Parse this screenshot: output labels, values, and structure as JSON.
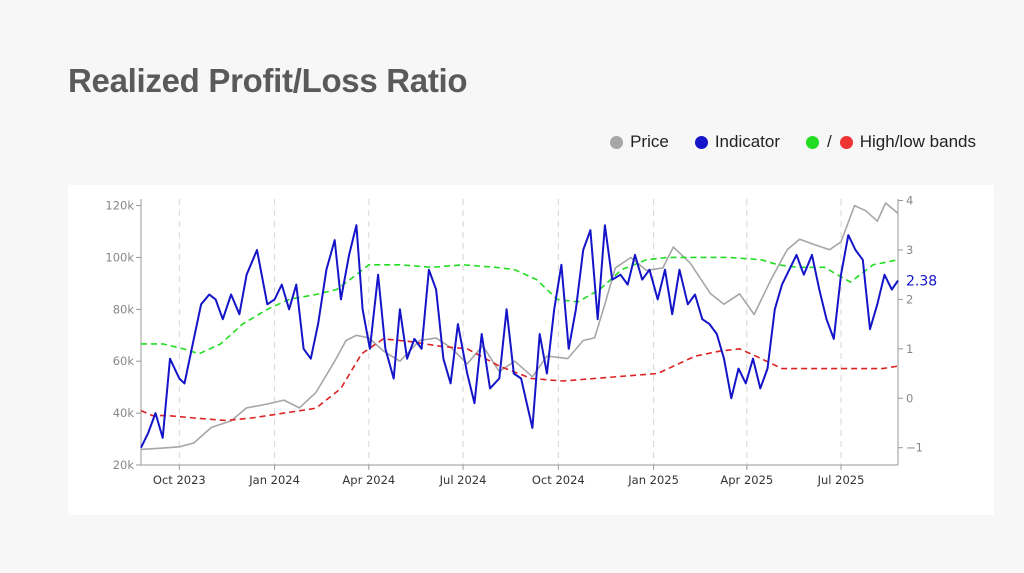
{
  "title": "Realized Profit/Loss Ratio",
  "legend": {
    "price_label": "Price",
    "indicator_label": "Indicator",
    "bands_label": "High/low bands",
    "bands_slash": "/"
  },
  "colors": {
    "price": "#a6a6a6",
    "indicator": "#1414c8",
    "high_band": "#22dd22",
    "low_band": "#dd2222",
    "title": "#5a5a5a",
    "axis_text": "#888888",
    "grid": "#d6d6d6"
  },
  "chart_data": {
    "type": "line",
    "title": "Realized Profit/Loss Ratio",
    "x_ticks": [
      "Oct 2023",
      "Jan 2024",
      "Apr 2024",
      "Jul 2024",
      "Oct 2024",
      "Jan 2025",
      "Apr 2025",
      "Jul 2025"
    ],
    "left_axis": {
      "ticks": [
        "20k",
        "40k",
        "60k",
        "80k",
        "100k",
        "120k"
      ],
      "tick_values": [
        20000,
        40000,
        60000,
        80000,
        100000,
        120000
      ],
      "range": [
        20000,
        121000
      ]
    },
    "right_axis": {
      "ticks": [
        "−1",
        "0",
        "1",
        "2",
        "3",
        "4"
      ],
      "tick_values": [
        -1,
        0,
        1,
        2,
        3,
        4
      ],
      "range": [
        -1.35,
        3.95
      ]
    },
    "x_range": [
      "2023-08-25",
      "2025-08-25"
    ],
    "last_value_label": "2.38",
    "vertical_grid": true,
    "horizontal_grid": false,
    "legend_position": "top-right",
    "series": [
      {
        "name": "Price",
        "axis": "left",
        "style": "solid",
        "x": [
          "2023-08-25",
          "2023-09-15",
          "2023-10-01",
          "2023-10-15",
          "2023-11-01",
          "2023-11-20",
          "2023-12-05",
          "2023-12-25",
          "2024-01-10",
          "2024-01-25",
          "2024-02-10",
          "2024-02-28",
          "2024-03-10",
          "2024-03-20",
          "2024-04-01",
          "2024-04-15",
          "2024-05-01",
          "2024-05-20",
          "2024-06-05",
          "2024-06-20",
          "2024-07-05",
          "2024-07-20",
          "2024-08-05",
          "2024-08-20",
          "2024-09-06",
          "2024-09-20",
          "2024-10-10",
          "2024-10-25",
          "2024-11-05",
          "2024-11-15",
          "2024-11-25",
          "2024-12-10",
          "2024-12-25",
          "2025-01-10",
          "2025-01-20",
          "2025-02-05",
          "2025-02-25",
          "2025-03-10",
          "2025-03-25",
          "2025-04-08",
          "2025-04-25",
          "2025-05-10",
          "2025-05-22",
          "2025-06-05",
          "2025-06-20",
          "2025-07-01",
          "2025-07-14",
          "2025-07-25",
          "2025-08-05",
          "2025-08-13",
          "2025-08-25"
        ],
        "values": [
          26000,
          26500,
          27000,
          28500,
          34500,
          37000,
          42000,
          43500,
          45000,
          42000,
          48000,
          60000,
          68000,
          70000,
          69000,
          64000,
          60000,
          68000,
          69000,
          65000,
          59000,
          66000,
          56000,
          60000,
          54000,
          62000,
          61000,
          68000,
          69000,
          82000,
          96000,
          100000,
          95000,
          96000,
          104000,
          98000,
          86000,
          82000,
          86000,
          78000,
          92000,
          103000,
          107000,
          105000,
          103000,
          106000,
          120000,
          118000,
          114000,
          121000,
          117000
        ]
      },
      {
        "name": "Indicator",
        "axis": "right",
        "style": "solid",
        "x": [
          "2023-08-25",
          "2023-09-01",
          "2023-09-08",
          "2023-09-15",
          "2023-09-22",
          "2023-10-01",
          "2023-10-06",
          "2023-10-15",
          "2023-10-22",
          "2023-10-30",
          "2023-11-05",
          "2023-11-12",
          "2023-11-20",
          "2023-11-28",
          "2023-12-05",
          "2023-12-15",
          "2023-12-25",
          "2024-01-01",
          "2024-01-08",
          "2024-01-15",
          "2024-01-22",
          "2024-01-29",
          "2024-02-05",
          "2024-02-12",
          "2024-02-20",
          "2024-02-28",
          "2024-03-05",
          "2024-03-13",
          "2024-03-20",
          "2024-03-26",
          "2024-04-02",
          "2024-04-10",
          "2024-04-17",
          "2024-04-25",
          "2024-05-01",
          "2024-05-08",
          "2024-05-15",
          "2024-05-22",
          "2024-05-29",
          "2024-06-05",
          "2024-06-12",
          "2024-06-19",
          "2024-06-26",
          "2024-07-05",
          "2024-07-12",
          "2024-07-19",
          "2024-07-27",
          "2024-08-05",
          "2024-08-12",
          "2024-08-19",
          "2024-08-26",
          "2024-09-06",
          "2024-09-13",
          "2024-09-20",
          "2024-09-27",
          "2024-10-04",
          "2024-10-11",
          "2024-10-18",
          "2024-10-25",
          "2024-11-01",
          "2024-11-08",
          "2024-11-15",
          "2024-11-22",
          "2024-11-30",
          "2024-12-07",
          "2024-12-14",
          "2024-12-21",
          "2024-12-28",
          "2025-01-05",
          "2025-01-12",
          "2025-01-19",
          "2025-01-26",
          "2025-02-03",
          "2025-02-10",
          "2025-02-17",
          "2025-02-24",
          "2025-03-03",
          "2025-03-10",
          "2025-03-17",
          "2025-03-24",
          "2025-03-31",
          "2025-04-07",
          "2025-04-14",
          "2025-04-21",
          "2025-04-28",
          "2025-05-05",
          "2025-05-12",
          "2025-05-19",
          "2025-05-26",
          "2025-06-03",
          "2025-06-10",
          "2025-06-17",
          "2025-06-24",
          "2025-07-01",
          "2025-07-08",
          "2025-07-15",
          "2025-07-22",
          "2025-07-29",
          "2025-08-05",
          "2025-08-12",
          "2025-08-19",
          "2025-08-25"
        ],
        "values": [
          -1.0,
          -0.7,
          -0.3,
          -0.8,
          0.8,
          0.4,
          0.3,
          1.2,
          1.9,
          2.1,
          2.0,
          1.6,
          2.1,
          1.7,
          2.5,
          3.0,
          1.9,
          2.0,
          2.3,
          1.8,
          2.3,
          1.0,
          0.8,
          1.5,
          2.6,
          3.2,
          2.0,
          2.9,
          3.5,
          1.8,
          1.0,
          2.5,
          1.0,
          0.4,
          1.8,
          0.8,
          1.2,
          1.0,
          2.6,
          2.2,
          0.8,
          0.3,
          1.5,
          0.5,
          -0.1,
          1.3,
          0.2,
          0.4,
          1.8,
          0.5,
          0.4,
          -0.6,
          1.3,
          0.5,
          1.8,
          2.7,
          1.0,
          1.8,
          3.0,
          3.4,
          1.6,
          3.5,
          2.4,
          2.5,
          2.3,
          2.9,
          2.4,
          2.6,
          2.0,
          2.6,
          1.7,
          2.6,
          1.9,
          2.1,
          1.6,
          1.5,
          1.3,
          0.8,
          0.0,
          0.6,
          0.3,
          0.8,
          0.2,
          0.6,
          1.8,
          2.3,
          2.6,
          2.9,
          2.5,
          2.9,
          2.2,
          1.6,
          1.2,
          2.5,
          3.3,
          3.0,
          2.8,
          1.4,
          1.9,
          2.5,
          2.2,
          2.38
        ]
      },
      {
        "name": "High band",
        "axis": "right",
        "style": "dashed",
        "x": [
          "2023-08-25",
          "2023-09-15",
          "2023-10-05",
          "2023-10-20",
          "2023-11-10",
          "2023-12-01",
          "2023-12-25",
          "2024-01-15",
          "2024-02-10",
          "2024-03-01",
          "2024-03-20",
          "2024-04-01",
          "2024-05-01",
          "2024-06-01",
          "2024-07-01",
          "2024-08-01",
          "2024-08-20",
          "2024-09-10",
          "2024-09-30",
          "2024-10-20",
          "2024-11-10",
          "2024-12-01",
          "2024-12-25",
          "2025-01-15",
          "2025-02-15",
          "2025-03-15",
          "2025-04-15",
          "2025-05-01",
          "2025-05-20",
          "2025-06-15",
          "2025-07-10",
          "2025-08-01",
          "2025-08-25"
        ],
        "values": [
          1.1,
          1.1,
          1.0,
          0.9,
          1.1,
          1.5,
          1.8,
          2.0,
          2.1,
          2.2,
          2.5,
          2.7,
          2.7,
          2.65,
          2.7,
          2.65,
          2.6,
          2.4,
          2.0,
          1.95,
          2.2,
          2.6,
          2.8,
          2.85,
          2.85,
          2.85,
          2.8,
          2.7,
          2.65,
          2.65,
          2.35,
          2.7,
          2.8
        ]
      },
      {
        "name": "Low band",
        "axis": "right",
        "style": "dashed",
        "x": [
          "2023-08-25",
          "2023-09-05",
          "2023-09-20",
          "2023-10-15",
          "2023-11-15",
          "2023-12-10",
          "2024-01-10",
          "2024-02-10",
          "2024-03-05",
          "2024-03-25",
          "2024-04-15",
          "2024-05-10",
          "2024-06-10",
          "2024-07-05",
          "2024-08-05",
          "2024-09-05",
          "2024-10-05",
          "2024-11-05",
          "2024-12-05",
          "2025-01-05",
          "2025-02-10",
          "2025-03-05",
          "2025-03-25",
          "2025-04-10",
          "2025-05-05",
          "2025-06-10",
          "2025-07-10",
          "2025-08-10",
          "2025-08-25"
        ],
        "values": [
          -0.25,
          -0.35,
          -0.35,
          -0.4,
          -0.45,
          -0.4,
          -0.3,
          -0.2,
          0.2,
          0.9,
          1.2,
          1.15,
          1.05,
          1.0,
          0.65,
          0.4,
          0.35,
          0.4,
          0.45,
          0.5,
          0.85,
          0.95,
          1.0,
          0.85,
          0.6,
          0.6,
          0.6,
          0.6,
          0.65
        ]
      }
    ]
  }
}
